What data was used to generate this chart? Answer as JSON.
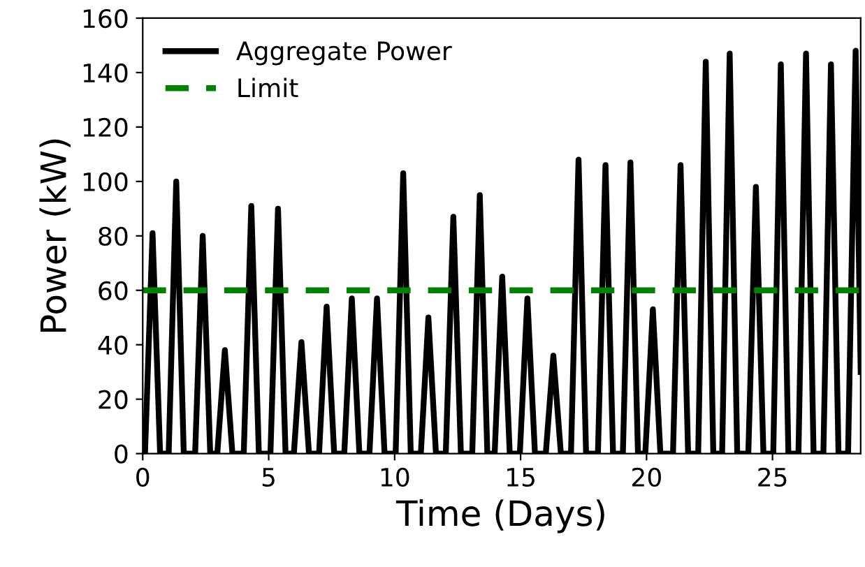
{
  "chart_data": {
    "type": "line",
    "xlabel": "Time (Days)",
    "ylabel": "Power (kW)",
    "xlim": [
      0,
      28.5
    ],
    "ylim": [
      0,
      160
    ],
    "xticks": [
      0,
      5,
      10,
      15,
      20,
      25
    ],
    "yticks": [
      0,
      20,
      40,
      60,
      80,
      100,
      120,
      140,
      160
    ],
    "grid": false,
    "legend": "top left",
    "series": [
      {
        "name": "Aggregate Power",
        "color": "#000000",
        "line_style": "solid",
        "x": [
          0,
          0.09,
          0.39,
          0.69,
          1.03,
          1.33,
          1.63,
          2.08,
          2.38,
          2.68,
          2.96,
          3.26,
          3.56,
          4.01,
          4.31,
          4.61,
          5.07,
          5.37,
          5.67,
          6.0,
          6.3,
          6.6,
          7.0,
          7.3,
          7.6,
          8.0,
          8.3,
          8.6,
          9.0,
          9.3,
          9.6,
          10.04,
          10.34,
          10.64,
          11.04,
          11.34,
          11.64,
          12.03,
          12.33,
          12.63,
          13.08,
          13.38,
          13.68,
          13.97,
          14.27,
          14.57,
          14.97,
          15.27,
          15.57,
          16.0,
          16.3,
          16.6,
          17.0,
          17.3,
          17.6,
          18.07,
          18.37,
          18.67,
          19.06,
          19.36,
          19.66,
          19.95,
          20.25,
          20.55,
          21.05,
          21.35,
          21.65,
          22.05,
          22.35,
          22.65,
          23.0,
          23.3,
          23.6,
          24.04,
          24.34,
          24.64,
          25.03,
          25.33,
          25.63,
          26.03,
          26.33,
          26.63,
          27.02,
          27.32,
          27.62,
          28.0,
          28.3,
          28.5
        ],
        "values": [
          0,
          0,
          81,
          0,
          0,
          100,
          0,
          0,
          80,
          0,
          0,
          38,
          0,
          0,
          91,
          0,
          0,
          90,
          0,
          0,
          41,
          0,
          0,
          54,
          0,
          0,
          57,
          0,
          0,
          57,
          0,
          0,
          103,
          0,
          0,
          50,
          0,
          0,
          87,
          0,
          0,
          95,
          0,
          0,
          65,
          0,
          0,
          57,
          0,
          0,
          36,
          0,
          0,
          108,
          0,
          0,
          106,
          0,
          0,
          107,
          0,
          0,
          53,
          0,
          0,
          106,
          0,
          0,
          144,
          0,
          0,
          147,
          0,
          0,
          98,
          0,
          0,
          143,
          0,
          0,
          147,
          0,
          0,
          143,
          0,
          0,
          148,
          30
        ]
      },
      {
        "name": "Limit",
        "color": "#008000",
        "line_style": "dashed",
        "x": [
          0,
          28.5
        ],
        "values": [
          60,
          60
        ]
      }
    ]
  }
}
